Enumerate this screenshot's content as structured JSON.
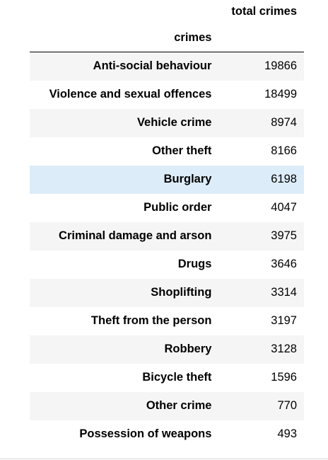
{
  "table": {
    "column_header": "total crimes",
    "index_header": "crimes",
    "highlighted_row": "Burglary",
    "rows": [
      {
        "label": "Anti-social behaviour",
        "value": "19866"
      },
      {
        "label": "Violence and sexual offences",
        "value": "18499"
      },
      {
        "label": "Vehicle crime",
        "value": "8974"
      },
      {
        "label": "Other theft",
        "value": "8166"
      },
      {
        "label": "Burglary",
        "value": "6198"
      },
      {
        "label": "Public order",
        "value": "4047"
      },
      {
        "label": "Criminal damage and arson",
        "value": "3975"
      },
      {
        "label": "Drugs",
        "value": "3646"
      },
      {
        "label": "Shoplifting",
        "value": "3314"
      },
      {
        "label": "Theft from the person",
        "value": "3197"
      },
      {
        "label": "Robbery",
        "value": "3128"
      },
      {
        "label": "Bicycle theft",
        "value": "1596"
      },
      {
        "label": "Other crime",
        "value": "770"
      },
      {
        "label": "Possession of weapons",
        "value": "493"
      }
    ]
  },
  "colors": {
    "stripe": "#f5f5f5",
    "hover": "#dcecf8",
    "rule": "#000000"
  }
}
